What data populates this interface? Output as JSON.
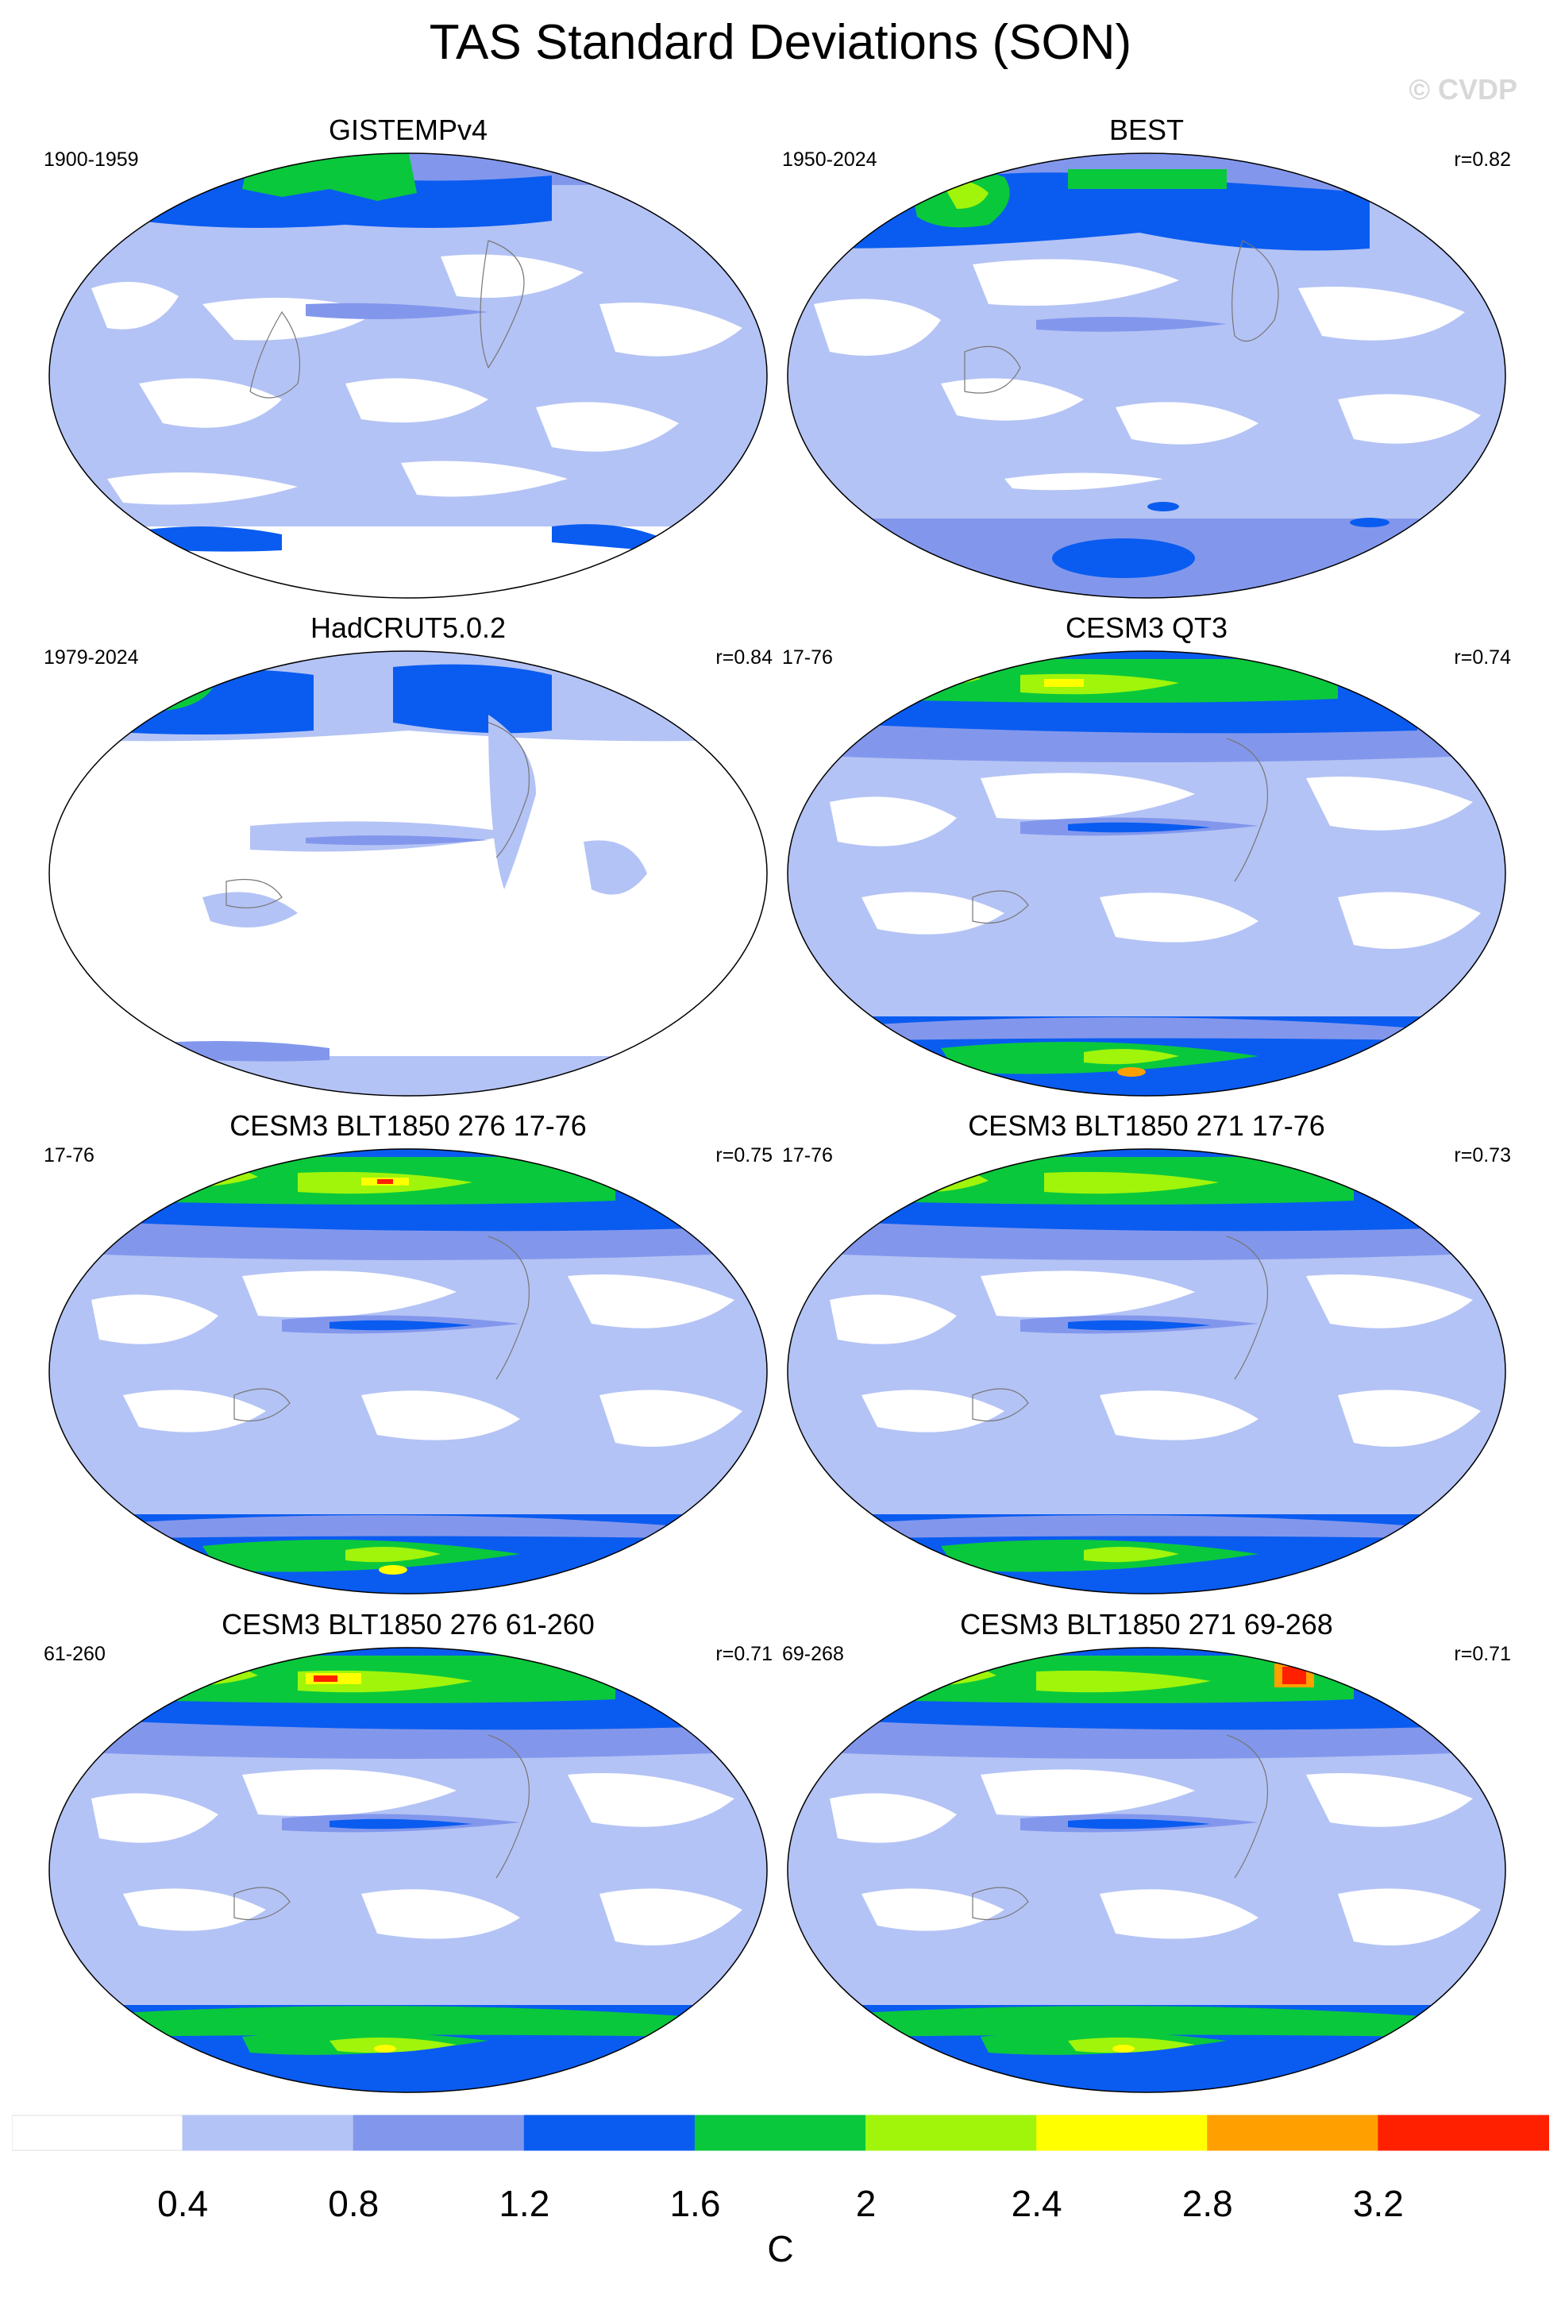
{
  "title": "TAS Standard Deviations (SON)",
  "watermark": "© CVDP",
  "panels": [
    {
      "title": "GISTEMPv4",
      "left": "1900-1959",
      "right": ""
    },
    {
      "title": "BEST",
      "left": "1950-2024",
      "right": "r=0.82"
    },
    {
      "title": "HadCRUT5.0.2",
      "left": "1979-2024",
      "right": "r=0.84"
    },
    {
      "title": "CESM3 QT3",
      "left": "17-76",
      "right": "r=0.74"
    },
    {
      "title": "CESM3 BLT1850 276 17-76",
      "left": "17-76",
      "right": "r=0.75"
    },
    {
      "title": "CESM3 BLT1850 271 17-76",
      "left": "17-76",
      "right": "r=0.73"
    },
    {
      "title": "CESM3 BLT1850 276 61-260",
      "left": "61-260",
      "right": "r=0.71"
    },
    {
      "title": "CESM3 BLT1850 271 69-268",
      "left": "69-268",
      "right": "r=0.71"
    }
  ],
  "colorbar": {
    "colors": [
      "#ffffff",
      "#b4c3f5",
      "#8297ec",
      "#0a5cf0",
      "#0ac83c",
      "#a0f50a",
      "#ffff00",
      "#ffa000",
      "#ff2000"
    ],
    "labels": [
      "0.4",
      "0.8",
      "1.2",
      "1.6",
      "2",
      "2.4",
      "2.8",
      "3.2"
    ],
    "unit": "C"
  }
}
